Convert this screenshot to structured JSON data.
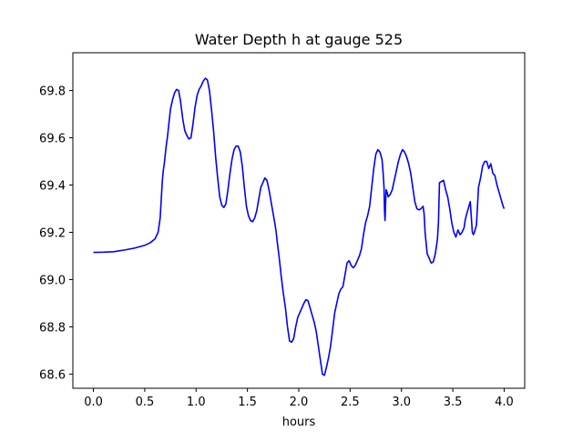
{
  "chart_data": {
    "type": "line",
    "title": "Water Depth h at gauge 525",
    "xlabel": "hours",
    "ylabel": "",
    "xlim": [
      -0.2,
      4.2
    ],
    "ylim": [
      68.54,
      69.96
    ],
    "x_ticks": [
      0.0,
      0.5,
      1.0,
      1.5,
      2.0,
      2.5,
      3.0,
      3.5,
      4.0
    ],
    "x_tick_labels": [
      "0.0",
      "0.5",
      "1.0",
      "1.5",
      "2.0",
      "2.5",
      "3.0",
      "3.5",
      "4.0"
    ],
    "y_ticks": [
      68.6,
      68.8,
      69.0,
      69.2,
      69.4,
      69.6,
      69.8
    ],
    "y_tick_labels": [
      "68.6",
      "68.8",
      "69.0",
      "69.2",
      "69.4",
      "69.6",
      "69.8"
    ],
    "grid": false,
    "series": [
      {
        "name": "",
        "color": "#0000ff",
        "x": [
          0.0,
          0.1,
          0.2,
          0.3,
          0.4,
          0.5,
          0.55,
          0.6,
          0.63,
          0.65,
          0.67,
          0.68,
          0.69,
          0.7,
          0.71,
          0.72,
          0.73,
          0.74,
          0.75,
          0.77,
          0.79,
          0.81,
          0.83,
          0.85,
          0.87,
          0.89,
          0.91,
          0.93,
          0.95,
          0.97,
          0.99,
          1.01,
          1.03,
          1.05,
          1.07,
          1.09,
          1.11,
          1.13,
          1.15,
          1.17,
          1.19,
          1.21,
          1.23,
          1.25,
          1.27,
          1.29,
          1.31,
          1.33,
          1.35,
          1.37,
          1.39,
          1.41,
          1.43,
          1.45,
          1.47,
          1.49,
          1.51,
          1.53,
          1.55,
          1.57,
          1.59,
          1.61,
          1.63,
          1.65,
          1.67,
          1.69,
          1.71,
          1.73,
          1.75,
          1.77,
          1.78,
          1.79,
          1.81,
          1.83,
          1.85,
          1.87,
          1.89,
          1.91,
          1.93,
          1.95,
          1.97,
          1.99,
          2.01,
          2.03,
          2.05,
          2.07,
          2.09,
          2.11,
          2.13,
          2.15,
          2.17,
          2.19,
          2.21,
          2.23,
          2.25,
          2.27,
          2.29,
          2.31,
          2.33,
          2.35,
          2.37,
          2.39,
          2.41,
          2.43,
          2.45,
          2.47,
          2.49,
          2.51,
          2.53,
          2.55,
          2.57,
          2.59,
          2.61,
          2.63,
          2.65,
          2.67,
          2.69,
          2.71,
          2.73,
          2.75,
          2.77,
          2.79,
          2.81,
          2.82,
          2.83,
          2.835,
          2.84,
          2.85,
          2.86,
          2.87,
          2.89,
          2.91,
          2.93,
          2.95,
          2.97,
          2.99,
          3.01,
          3.03,
          3.05,
          3.07,
          3.09,
          3.11,
          3.13,
          3.15,
          3.17,
          3.19,
          3.21,
          3.22,
          3.23,
          3.25,
          3.27,
          3.29,
          3.31,
          3.33,
          3.35,
          3.36,
          3.37,
          3.39,
          3.41,
          3.43,
          3.45,
          3.47,
          3.49,
          3.51,
          3.53,
          3.55,
          3.57,
          3.59,
          3.61,
          3.62,
          3.63,
          3.65,
          3.67,
          3.69,
          3.7,
          3.71,
          3.73,
          3.75,
          3.76,
          3.77,
          3.79,
          3.81,
          3.83,
          3.85,
          3.87,
          3.89,
          3.91,
          3.93,
          3.95,
          3.97,
          3.99,
          4.0
        ],
        "y": [
          69.115,
          69.116,
          69.118,
          69.125,
          69.133,
          69.145,
          69.155,
          69.172,
          69.2,
          69.26,
          69.41,
          69.46,
          69.49,
          69.53,
          69.57,
          69.6,
          69.64,
          69.68,
          69.72,
          69.76,
          69.79,
          69.805,
          69.8,
          69.75,
          69.68,
          69.63,
          69.61,
          69.595,
          69.6,
          69.66,
          69.73,
          69.78,
          69.805,
          69.82,
          69.84,
          69.852,
          69.845,
          69.8,
          69.72,
          69.63,
          69.52,
          69.43,
          69.35,
          69.315,
          69.305,
          69.32,
          69.38,
          69.45,
          69.51,
          69.55,
          69.565,
          69.565,
          69.54,
          69.48,
          69.39,
          69.31,
          69.27,
          69.25,
          69.245,
          69.26,
          69.29,
          69.34,
          69.39,
          69.41,
          69.43,
          69.42,
          69.38,
          69.33,
          69.28,
          69.23,
          69.2,
          69.16,
          69.09,
          69.01,
          68.94,
          68.88,
          68.8,
          68.74,
          68.735,
          68.75,
          68.8,
          68.84,
          68.86,
          68.88,
          68.9,
          68.915,
          68.91,
          68.88,
          68.85,
          68.82,
          68.78,
          68.72,
          68.66,
          68.6,
          68.595,
          68.63,
          68.67,
          68.72,
          68.79,
          68.86,
          68.9,
          68.94,
          68.96,
          68.97,
          69.02,
          69.07,
          69.08,
          69.06,
          69.05,
          69.06,
          69.08,
          69.1,
          69.13,
          69.19,
          69.24,
          69.27,
          69.31,
          69.39,
          69.47,
          69.53,
          69.55,
          69.54,
          69.51,
          69.46,
          69.39,
          69.29,
          69.25,
          69.38,
          69.37,
          69.35,
          69.36,
          69.38,
          69.42,
          69.46,
          69.5,
          69.53,
          69.55,
          69.54,
          69.52,
          69.49,
          69.45,
          69.39,
          69.33,
          69.3,
          69.295,
          69.3,
          69.31,
          69.28,
          69.2,
          69.11,
          69.09,
          69.07,
          69.075,
          69.11,
          69.17,
          69.24,
          69.41,
          69.415,
          69.42,
          69.38,
          69.35,
          69.3,
          69.24,
          69.2,
          69.18,
          69.21,
          69.19,
          69.2,
          69.22,
          69.25,
          69.27,
          69.3,
          69.33,
          69.2,
          69.19,
          69.2,
          69.23,
          69.39,
          69.41,
          69.43,
          69.48,
          69.5,
          69.5,
          69.47,
          69.49,
          69.45,
          69.44,
          69.4,
          69.37,
          69.34,
          69.31,
          69.3
        ]
      }
    ]
  }
}
